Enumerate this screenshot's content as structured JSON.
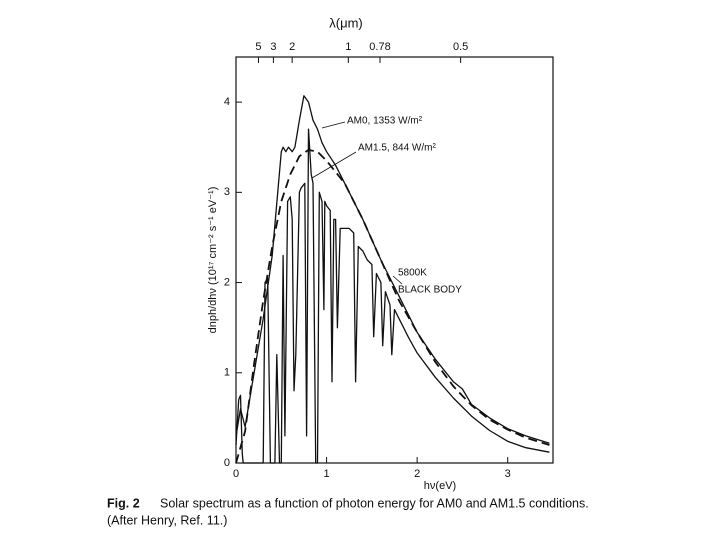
{
  "chart_data": {
    "type": "line",
    "x_label": "hν(eV)",
    "y_label": "dnph/dhν (10¹⁷ cm⁻² s⁻¹ eV⁻¹)",
    "x2_label": "λ(μm)",
    "xlim": [
      0,
      3.5
    ],
    "ylim": [
      0,
      4.5
    ],
    "xticks": [
      0,
      1,
      2,
      3
    ],
    "yticks": [
      0,
      1,
      2,
      3,
      4
    ],
    "x2ticks": [
      {
        "value": 0.248,
        "label": "5"
      },
      {
        "value": 0.413,
        "label": "3"
      },
      {
        "value": 0.62,
        "label": "2"
      },
      {
        "value": 1.24,
        "label": "1"
      },
      {
        "value": 1.59,
        "label": "0.78"
      },
      {
        "value": 2.48,
        "label": "0.5"
      }
    ],
    "annotations": [
      "AM0, 1353 W/m²",
      "AM1.5, 844 W/m²",
      "5800K",
      "BLACK BODY"
    ],
    "caption_label": "Fig. 2",
    "caption": "Solar spectrum as a function of photon energy for AM0 and AM1.5 conditions.",
    "caption_note": "(After Henry, Ref. 11.)",
    "series": [
      {
        "name": "AM0",
        "color": "#111111",
        "dash": false,
        "x": [
          0,
          0.05,
          0.1,
          0.2,
          0.3,
          0.4,
          0.5,
          0.52,
          0.55,
          0.58,
          0.62,
          0.65,
          0.7,
          0.75,
          0.8,
          0.85,
          0.9,
          0.95,
          1.0,
          1.1,
          1.2,
          1.4,
          1.6,
          1.8,
          2.0,
          2.2,
          2.4,
          2.5,
          2.6,
          2.8,
          3.0,
          3.2,
          3.46
        ],
        "values": [
          0.3,
          0.6,
          0.4,
          1.0,
          1.6,
          2.3,
          3.45,
          3.5,
          3.45,
          3.5,
          3.45,
          3.5,
          3.8,
          4.07,
          4.0,
          3.8,
          3.7,
          3.55,
          3.45,
          3.3,
          3.1,
          2.7,
          2.25,
          1.85,
          1.45,
          1.15,
          0.9,
          0.82,
          0.65,
          0.5,
          0.38,
          0.3,
          0.22
        ]
      },
      {
        "name": "AM1.5",
        "color": "#111111",
        "dash": false,
        "x": [
          0,
          0.03,
          0.05,
          0.07,
          0.08,
          0.12,
          0.3,
          0.32,
          0.35,
          0.38,
          0.43,
          0.45,
          0.48,
          0.5,
          0.52,
          0.54,
          0.57,
          0.6,
          0.62,
          0.64,
          0.66,
          0.7,
          0.72,
          0.76,
          0.78,
          0.8,
          0.83,
          0.85,
          0.88,
          0.9,
          0.92,
          0.95,
          0.97,
          0.98,
          1.0,
          1.04,
          1.06,
          1.08,
          1.1,
          1.12,
          1.15,
          1.2,
          1.25,
          1.3,
          1.32,
          1.35,
          1.4,
          1.45,
          1.5,
          1.52,
          1.55,
          1.6,
          1.62,
          1.65,
          1.7,
          1.72,
          1.75,
          1.8,
          1.85,
          1.9,
          2.0,
          2.2,
          2.4,
          2.6,
          2.8,
          3.0,
          3.2,
          3.46
        ],
        "values": [
          0.2,
          0.7,
          0.75,
          0.1,
          0,
          0,
          0,
          2.0,
          2.05,
          0,
          0,
          1.2,
          0,
          0,
          2.3,
          0.3,
          2.9,
          2.95,
          2.7,
          0.8,
          1.2,
          3.0,
          3.05,
          3.1,
          0.3,
          3.7,
          3.2,
          3.1,
          0,
          0,
          3.0,
          2.9,
          1.7,
          2.9,
          2.85,
          2.8,
          0.9,
          2.7,
          2.7,
          1.5,
          2.6,
          2.6,
          2.6,
          2.55,
          0.9,
          2.4,
          2.35,
          2.25,
          2.2,
          1.4,
          2.1,
          2.0,
          1.3,
          1.9,
          1.75,
          1.2,
          1.7,
          1.6,
          1.5,
          1.4,
          1.22,
          0.95,
          0.72,
          0.52,
          0.36,
          0.24,
          0.17,
          0.12
        ]
      },
      {
        "name": "5800K black body",
        "color": "#111111",
        "dash": true,
        "x": [
          0,
          0.1,
          0.2,
          0.3,
          0.4,
          0.5,
          0.6,
          0.7,
          0.8,
          0.9,
          1.0,
          1.2,
          1.4,
          1.6,
          1.8,
          2.0,
          2.2,
          2.4,
          2.6,
          2.8,
          3.0,
          3.2,
          3.46
        ],
        "values": [
          0,
          0.35,
          1.1,
          1.8,
          2.4,
          2.9,
          3.2,
          3.4,
          3.47,
          3.45,
          3.35,
          3.1,
          2.7,
          2.25,
          1.8,
          1.45,
          1.12,
          0.85,
          0.64,
          0.48,
          0.37,
          0.28,
          0.2
        ]
      }
    ]
  }
}
